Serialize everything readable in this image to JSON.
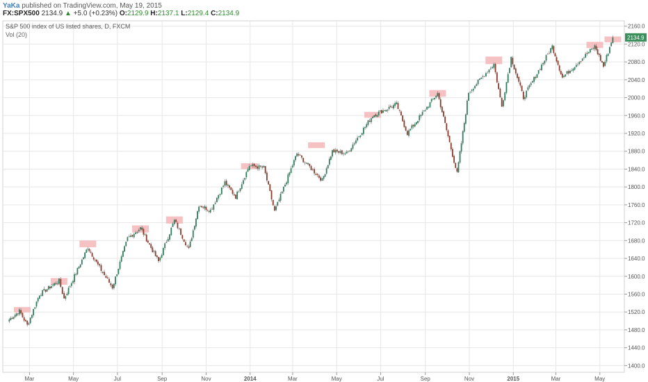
{
  "header": {
    "author": "YaKa",
    "published": "published on TradingView.com, May 19, 2015",
    "symbol": "FX:SPX500",
    "last": "2134.9",
    "change": "+5.0 (+0.23%)",
    "open_label": "O:",
    "open": "2129.9",
    "high_label": "H:",
    "high": "2137.1",
    "low_label": "L:",
    "low": "2129.4",
    "close_label": "C:",
    "close": "2134.9",
    "up_arrow": "▲"
  },
  "colors": {
    "up": "#2e7d5b",
    "down": "#8b3a2a",
    "wick": "#8a8a8a",
    "highlight": "#f4b6b8",
    "grid": "#e6e6e6",
    "price_tag": "#3a8f5a"
  },
  "chart_data": {
    "type": "candlestick",
    "title": "S&P 500 index of US listed shares, D, FXCM",
    "indicator": "Vol (20)",
    "current_price_label": "2134.9",
    "y_ticks": [
      "2160.0",
      "2120.0",
      "2080.0",
      "2040.0",
      "2000.0",
      "1960.0",
      "1920.0",
      "1880.0",
      "1840.0",
      "1800.0",
      "1760.0",
      "1720.0",
      "1680.0",
      "1640.0",
      "1600.0",
      "1560.0",
      "1520.0",
      "1480.0",
      "1440.0",
      "1400.0"
    ],
    "x_ticks": [
      "Mar",
      "May",
      "Jul",
      "Sep",
      "Nov",
      "2014",
      "Mar",
      "May",
      "Jul",
      "Sep",
      "Nov",
      "2015",
      "Mar",
      "May"
    ],
    "ylim": [
      1385,
      2172
    ],
    "x": [
      "2013-02-01",
      "2013-02-15",
      "2013-02-26",
      "2013-03-15",
      "2013-04-11",
      "2013-04-18",
      "2013-05-21",
      "2013-06-04",
      "2013-06-24",
      "2013-07-15",
      "2013-08-02",
      "2013-08-27",
      "2013-09-18",
      "2013-10-08",
      "2013-10-22",
      "2013-11-07",
      "2013-11-27",
      "2013-12-12",
      "2013-12-31",
      "2014-01-20",
      "2014-02-04",
      "2014-03-07",
      "2014-04-11",
      "2014-04-25",
      "2014-05-15",
      "2014-06-20",
      "2014-07-23",
      "2014-08-07",
      "2014-09-18",
      "2014-10-15",
      "2014-10-31",
      "2014-12-05",
      "2014-12-16",
      "2014-12-29",
      "2015-01-15",
      "2015-02-24",
      "2015-03-10",
      "2015-04-24",
      "2015-05-06",
      "2015-05-19"
    ],
    "close": [
      1503,
      1522,
      1490,
      1560,
      1590,
      1550,
      1665,
      1625,
      1575,
      1685,
      1708,
      1633,
      1725,
      1660,
      1760,
      1748,
      1810,
      1778,
      1848,
      1843,
      1745,
      1875,
      1815,
      1880,
      1875,
      1960,
      1985,
      1920,
      2010,
      1830,
      2012,
      2075,
      1980,
      2090,
      2000,
      2115,
      2045,
      2115,
      2070,
      2135
    ],
    "highlights": [
      {
        "date": "2013-02-19",
        "low": 1519,
        "high": 1531
      },
      {
        "date": "2013-05-21",
        "low": 1665,
        "high": 1680
      },
      {
        "date": "2013-04-11",
        "low": 1581,
        "high": 1596
      },
      {
        "date": "2013-08-02",
        "low": 1698,
        "high": 1714
      },
      {
        "date": "2013-09-18",
        "low": 1718,
        "high": 1734
      },
      {
        "date": "2013-12-31",
        "low": 1840,
        "high": 1853
      },
      {
        "date": "2014-04-03",
        "low": 1887,
        "high": 1900
      },
      {
        "date": "2014-06-20",
        "low": 1955,
        "high": 1968
      },
      {
        "date": "2014-09-18",
        "low": 2002,
        "high": 2017
      },
      {
        "date": "2014-12-05",
        "low": 2075,
        "high": 2092
      },
      {
        "date": "2015-04-24",
        "low": 2111,
        "high": 2125
      },
      {
        "date": "2015-05-19",
        "low": 2124,
        "high": 2137
      }
    ]
  }
}
